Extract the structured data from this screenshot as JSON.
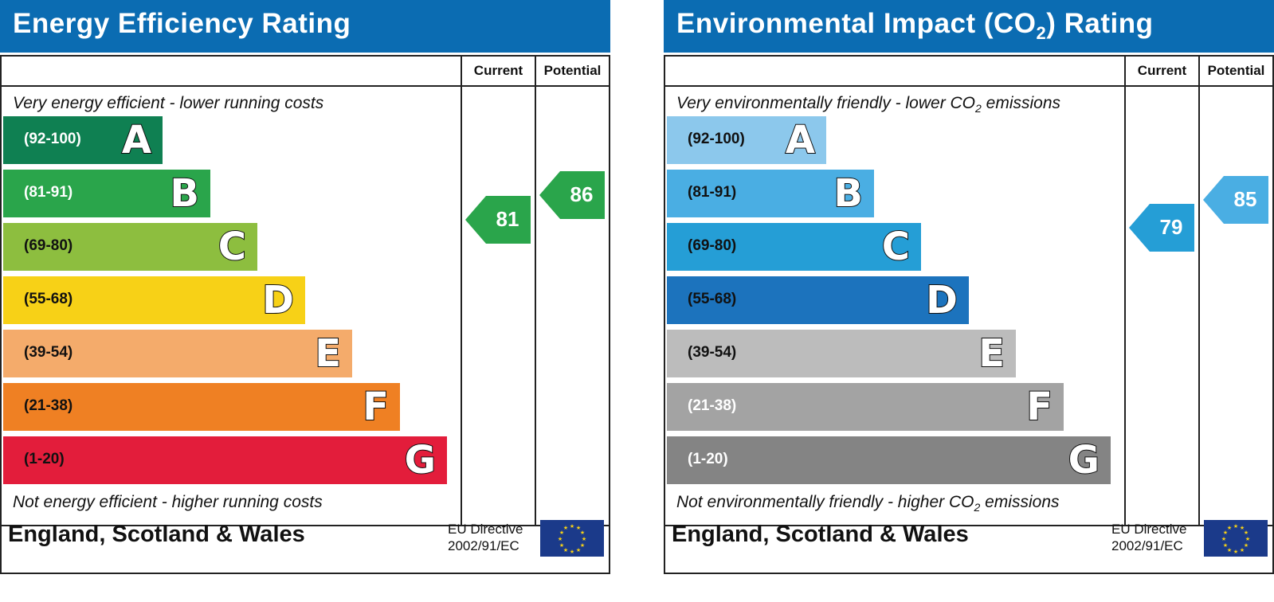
{
  "panels": [
    {
      "id": "energy",
      "title_main": "Energy Efficiency Rating",
      "title_sub": "",
      "title_after": "",
      "col_current": "Current",
      "col_potential": "Potential",
      "top_caption": "Very energy efficient - lower running costs",
      "top_caption_sub": "",
      "top_caption_after": "",
      "bottom_caption": "Not energy efficient - higher running costs",
      "bottom_caption_sub": "",
      "bottom_caption_after": "",
      "footer": "England, Scotland & Wales",
      "eu_line1": "EU Directive",
      "eu_line2": "2002/91/EC"
    },
    {
      "id": "environmental",
      "title_main": "Environmental Impact (CO",
      "title_sub": "2",
      "title_after": ") Rating",
      "col_current": "Current",
      "col_potential": "Potential",
      "top_caption": "Very environmentally friendly - lower CO",
      "top_caption_sub": "2",
      "top_caption_after": " emissions",
      "bottom_caption": "Not environmentally friendly - higher CO",
      "bottom_caption_sub": "2",
      "bottom_caption_after": " emissions",
      "footer": "England, Scotland & Wales",
      "eu_line1": "EU Directive",
      "eu_line2": "2002/91/EC"
    }
  ],
  "chart_data": [
    {
      "type": "bar",
      "categories": [
        "A",
        "B",
        "C",
        "D",
        "E",
        "F",
        "G"
      ],
      "ranges": [
        "(92-100)",
        "(81-91)",
        "(69-80)",
        "(55-68)",
        "(39-54)",
        "(21-38)",
        "(1-20)"
      ],
      "range_min": [
        92,
        81,
        69,
        55,
        39,
        21,
        1
      ],
      "colors": [
        "#0f8052",
        "#2aa54b",
        "#8dbe3f",
        "#f7d117",
        "#f4ab6b",
        "#ef8023",
        "#e31d3b"
      ],
      "label_colors": [
        "#ffffff",
        "#ffffff",
        "#111111",
        "#111111",
        "#111111",
        "#111111",
        "#111111"
      ],
      "current": 81,
      "potential": 86,
      "current_color": "#2aa54b",
      "potential_color": "#2aa54b"
    },
    {
      "type": "bar",
      "categories": [
        "A",
        "B",
        "C",
        "D",
        "E",
        "F",
        "G"
      ],
      "ranges": [
        "(92-100)",
        "(81-91)",
        "(69-80)",
        "(55-68)",
        "(39-54)",
        "(21-38)",
        "(1-20)"
      ],
      "range_min": [
        92,
        81,
        69,
        55,
        39,
        21,
        1
      ],
      "colors": [
        "#8cc8ec",
        "#4aaee3",
        "#259ed6",
        "#1c73bd",
        "#bcbcbc",
        "#a3a3a3",
        "#848484"
      ],
      "label_colors": [
        "#111111",
        "#111111",
        "#111111",
        "#111111",
        "#111111",
        "#ffffff",
        "#ffffff"
      ],
      "current": 79,
      "potential": 85,
      "current_color": "#259ed6",
      "potential_color": "#4aaee3"
    }
  ],
  "icons": {
    "eu_flag": "eu-flag-icon"
  }
}
